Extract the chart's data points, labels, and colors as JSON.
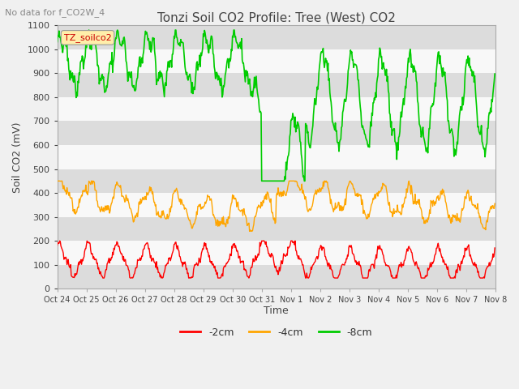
{
  "title": "Tonzi Soil CO2 Profile: Tree (West) CO2",
  "suptitle": "No data for f_CO2W_4",
  "ylabel": "Soil CO2 (mV)",
  "xlabel": "Time",
  "ylim": [
    0,
    1100
  ],
  "legend_labels": [
    "-2cm",
    "-4cm",
    "-8cm"
  ],
  "legend_colors": [
    "#ff0000",
    "#ffa500",
    "#00cc00"
  ],
  "xtick_labels": [
    "Oct 24",
    "Oct 25",
    "Oct 26",
    "Oct 27",
    "Oct 28",
    "Oct 29",
    "Oct 30",
    "Oct 31",
    "Nov 1",
    "Nov 2",
    "Nov 3",
    "Nov 4",
    "Nov 5",
    "Nov 6",
    "Nov 7",
    "Nov 8"
  ],
  "legend_box_color": "#ffeeaa",
  "legend_text_color": "#cc0000",
  "bg_color": "#f0f0f0",
  "plot_bg_color": "#e8e8e8",
  "figsize": [
    6.4,
    4.8
  ],
  "dpi": 100
}
